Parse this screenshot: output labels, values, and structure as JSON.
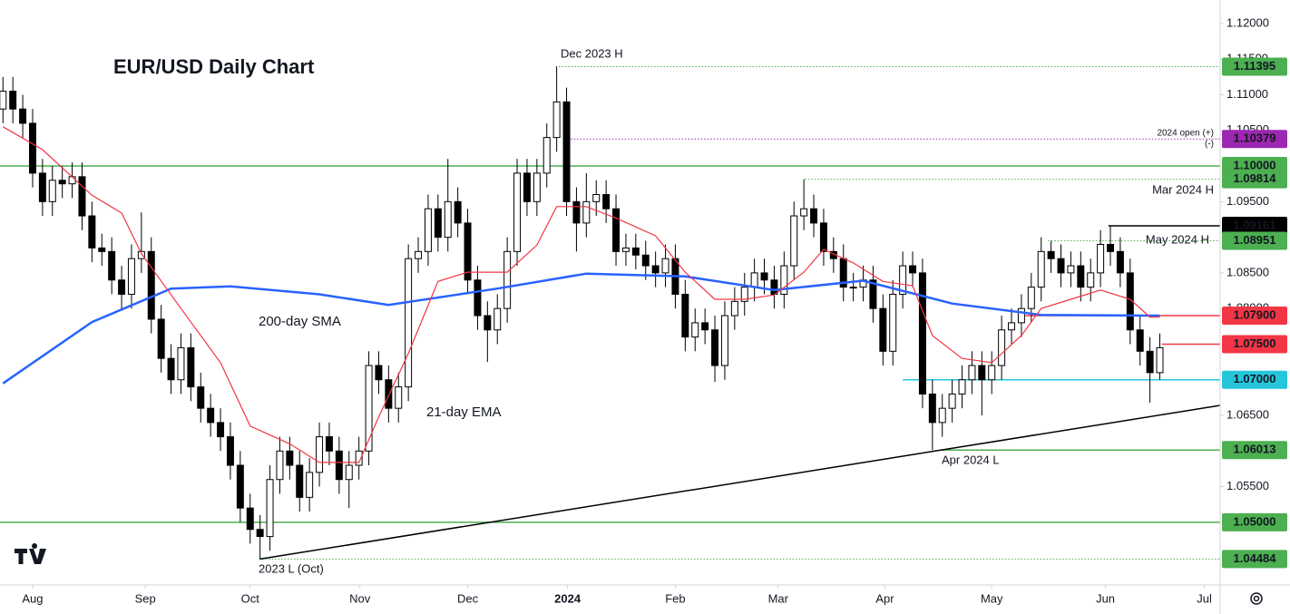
{
  "chart_data": {
    "type": "candlestick",
    "title": "EUR/USD Daily Chart",
    "up_color": "#ffffff",
    "down_color": "#000000",
    "open": [
      1.108,
      1.1105,
      1.108,
      1.106,
      1.099,
      1.095,
      1.098,
      1.0975,
      1.0985,
      1.093,
      1.0885,
      1.088,
      1.084,
      1.082,
      1.087,
      1.088,
      1.0785,
      1.073,
      1.07,
      1.0745,
      1.069,
      1.066,
      1.064,
      1.062,
      1.058,
      1.052,
      1.049,
      1.048,
      1.056,
      1.06,
      1.058,
      1.0535,
      1.057,
      1.062,
      1.06,
      1.056,
      1.058,
      1.06,
      1.072,
      1.07,
      1.066,
      1.069,
      1.087,
      1.088,
      1.094,
      1.09,
      1.095,
      1.092,
      1.084,
      1.079,
      1.077,
      1.08,
      1.088,
      1.099,
      1.095,
      1.099,
      1.104,
      1.109,
      1.095,
      1.092,
      1.095,
      1.096,
      1.094,
      1.088,
      1.0885,
      1.0875,
      1.086,
      1.085,
      1.087,
      1.082,
      1.076,
      1.078,
      1.077,
      1.072,
      1.079,
      1.081,
      1.083,
      1.085,
      1.084,
      1.082,
      1.086,
      1.093,
      1.094,
      1.092,
      1.088,
      1.087,
      1.083,
      1.083,
      1.084,
      1.08,
      1.074,
      1.082,
      1.086,
      1.085,
      1.068,
      1.064,
      1.066,
      1.068,
      1.07,
      1.072,
      1.07,
      1.072,
      1.077,
      1.078,
      1.08,
      1.083,
      1.088,
      1.087,
      1.085,
      1.086,
      1.083,
      1.085,
      1.089,
      1.088,
      1.085,
      1.077,
      1.074,
      1.071
    ],
    "high": [
      1.1125,
      1.1125,
      1.11,
      1.108,
      1.101,
      1.1,
      1.1,
      1.1005,
      1.1005,
      1.095,
      1.0905,
      1.09,
      1.086,
      1.089,
      1.0935,
      1.09,
      1.0805,
      1.075,
      1.0765,
      1.0765,
      1.071,
      1.068,
      1.066,
      1.064,
      1.06,
      1.054,
      1.051,
      1.058,
      1.062,
      1.062,
      1.06,
      1.059,
      1.064,
      1.064,
      1.062,
      1.06,
      1.062,
      1.074,
      1.074,
      1.072,
      1.071,
      1.089,
      1.09,
      1.096,
      1.096,
      1.101,
      1.097,
      1.094,
      1.086,
      1.081,
      1.082,
      1.09,
      1.101,
      1.101,
      1.101,
      1.106,
      1.11395,
      1.111,
      1.097,
      1.099,
      1.098,
      1.098,
      1.096,
      1.0905,
      1.0905,
      1.0895,
      1.088,
      1.089,
      1.089,
      1.084,
      1.08,
      1.08,
      1.079,
      1.081,
      1.083,
      1.085,
      1.087,
      1.087,
      1.086,
      1.088,
      1.095,
      1.09814,
      1.096,
      1.094,
      1.09,
      1.089,
      1.085,
      1.086,
      1.086,
      1.082,
      1.084,
      1.088,
      1.088,
      1.087,
      1.07,
      1.068,
      1.07,
      1.072,
      1.074,
      1.074,
      1.074,
      1.079,
      1.08,
      1.082,
      1.085,
      1.09,
      1.0895,
      1.089,
      1.088,
      1.088,
      1.087,
      1.091,
      1.09161,
      1.09,
      1.087,
      1.079,
      1.076,
      1.0765
    ],
    "low": [
      1.106,
      1.106,
      1.104,
      1.097,
      1.093,
      1.093,
      1.0955,
      1.0955,
      1.091,
      1.0865,
      1.086,
      1.082,
      1.08,
      1.08,
      1.085,
      1.0765,
      1.071,
      1.068,
      1.068,
      1.067,
      1.064,
      1.062,
      1.06,
      1.056,
      1.05,
      1.047,
      1.04484,
      1.046,
      1.054,
      1.056,
      1.0515,
      1.0515,
      1.055,
      1.058,
      1.054,
      1.052,
      1.056,
      1.058,
      1.068,
      1.064,
      1.064,
      1.067,
      1.085,
      1.086,
      1.088,
      1.088,
      1.09,
      1.082,
      1.077,
      1.0725,
      1.075,
      1.078,
      1.086,
      1.093,
      1.093,
      1.097,
      1.102,
      1.093,
      1.088,
      1.09,
      1.093,
      1.092,
      1.086,
      1.086,
      1.0855,
      1.084,
      1.083,
      1.083,
      1.08,
      1.074,
      1.074,
      1.075,
      1.0697,
      1.07,
      1.077,
      1.079,
      1.081,
      1.082,
      1.08,
      1.08,
      1.084,
      1.091,
      1.09,
      1.086,
      1.085,
      1.081,
      1.081,
      1.081,
      1.078,
      1.072,
      1.072,
      1.08,
      1.083,
      1.066,
      1.06013,
      1.062,
      1.064,
      1.066,
      1.068,
      1.065,
      1.068,
      1.07,
      1.075,
      1.076,
      1.078,
      1.081,
      1.085,
      1.083,
      1.083,
      1.081,
      1.081,
      1.083,
      1.086,
      1.083,
      1.075,
      1.072,
      1.0668,
      1.07
    ],
    "close": [
      1.1105,
      1.108,
      1.106,
      1.099,
      1.095,
      1.098,
      1.0975,
      1.0985,
      1.093,
      1.0885,
      1.088,
      1.084,
      1.082,
      1.087,
      1.088,
      1.0785,
      1.073,
      1.07,
      1.0745,
      1.069,
      1.066,
      1.064,
      1.062,
      1.058,
      1.052,
      1.049,
      1.048,
      1.056,
      1.06,
      1.058,
      1.0535,
      1.057,
      1.062,
      1.06,
      1.056,
      1.058,
      1.06,
      1.072,
      1.07,
      1.066,
      1.069,
      1.087,
      1.088,
      1.094,
      1.09,
      1.095,
      1.092,
      1.084,
      1.079,
      1.077,
      1.08,
      1.088,
      1.099,
      1.095,
      1.099,
      1.104,
      1.109,
      1.095,
      1.092,
      1.095,
      1.096,
      1.094,
      1.088,
      1.0885,
      1.0875,
      1.086,
      1.085,
      1.087,
      1.082,
      1.076,
      1.078,
      1.077,
      1.072,
      1.079,
      1.081,
      1.083,
      1.085,
      1.084,
      1.082,
      1.086,
      1.093,
      1.094,
      1.092,
      1.088,
      1.087,
      1.083,
      1.083,
      1.084,
      1.08,
      1.074,
      1.082,
      1.086,
      1.085,
      1.068,
      1.064,
      1.066,
      1.068,
      1.07,
      1.072,
      1.07,
      1.072,
      1.077,
      1.078,
      1.08,
      1.083,
      1.088,
      1.087,
      1.085,
      1.086,
      1.083,
      1.085,
      1.089,
      1.088,
      1.085,
      1.077,
      1.074,
      1.071,
      1.0745
    ],
    "series": [
      {
        "name": "200-day SMA",
        "color": "#2962ff",
        "x": [
          0,
          9,
          17,
          23,
          32,
          39,
          50,
          59,
          69,
          78,
          87,
          96,
          105,
          117
        ],
        "values": [
          1.0695,
          1.0781,
          1.0828,
          1.0831,
          1.082,
          1.0805,
          1.0828,
          1.0849,
          1.0845,
          1.0826,
          1.0839,
          1.0807,
          1.0791,
          1.079
        ]
      },
      {
        "name": "21-day EMA",
        "color": "#f23645",
        "x": [
          0,
          4,
          9,
          12,
          14,
          18,
          22,
          25,
          29,
          32,
          36,
          38,
          41,
          44,
          47,
          51,
          54,
          56,
          59,
          62,
          66,
          69,
          72,
          75,
          78,
          81,
          83,
          86,
          89,
          92,
          94,
          97,
          100,
          103,
          105,
          108,
          111,
          114,
          116,
          117
        ],
        "values": [
          1.1055,
          1.1023,
          1.0959,
          1.0934,
          1.0877,
          1.08,
          1.0724,
          1.0635,
          1.061,
          1.0584,
          1.0584,
          1.0648,
          1.0737,
          1.0838,
          1.0851,
          1.0851,
          1.0889,
          1.0943,
          1.0943,
          1.0927,
          1.0902,
          1.0851,
          1.0813,
          1.0813,
          1.0819,
          1.0851,
          1.0883,
          1.0864,
          1.0838,
          1.0832,
          1.0762,
          1.073,
          1.0724,
          1.0762,
          1.08,
          1.0813,
          1.0826,
          1.0813,
          1.0788,
          1.0788
        ]
      }
    ],
    "trendline": {
      "x": [
        26,
        123.1
      ],
      "values": [
        1.04484,
        1.0664
      ]
    },
    "levels": [
      {
        "value": 1.11395,
        "color": "#4caf50",
        "text_color": "#ffffff",
        "style": "dotted",
        "x_start": 55.9
      },
      {
        "value": 1.10379,
        "color": "#9c27b0",
        "text_color": "#ffffff",
        "style": "dotted",
        "x_start": 57.1
      },
      {
        "value": 1.1,
        "label": "1.10000",
        "color": "#4caf50",
        "text_color": "#ffffff",
        "style": "solid",
        "x_start": -0.3
      },
      {
        "value": 1.09814,
        "color": "#4caf50",
        "text_color": "#ffffff",
        "style": "dotted",
        "x_start": 81.1
      },
      {
        "value": 1.09161,
        "color": "#000000",
        "text_color": "#ffffff",
        "style": "solid",
        "x_start": 111.8
      },
      {
        "value": 1.08951,
        "color": "#4caf50",
        "text_color": "#ffffff",
        "style": "dotted",
        "x_start": 105.7
      },
      {
        "value": 1.079,
        "label": "1.07900",
        "color": "#f23645",
        "text_color": "#ffffff",
        "style": "solid",
        "x_start": 103.4
      },
      {
        "value": 1.075,
        "label": "1.07500",
        "color": "#f23645",
        "text_color": "#ffffff",
        "style": "solid",
        "x_start": 117.2
      },
      {
        "value": 1.07,
        "label": "1.07000",
        "color": "#26c6da",
        "text_color": "#131722",
        "style": "solid",
        "x_start": 91
      },
      {
        "value": 1.06013,
        "color": "#4caf50",
        "text_color": "#ffffff",
        "style": "solid",
        "x_start": 94.7
      },
      {
        "value": 1.05,
        "label": "1.05000",
        "color": "#4caf50",
        "text_color": "#ffffff",
        "style": "solid",
        "x_start": -0.3
      },
      {
        "value": 1.04484,
        "color": "#4caf50",
        "text_color": "#ffffff",
        "style": "dotted",
        "x_start": 25.9
      }
    ],
    "annotations": [
      "Dec 2023 H",
      "2024 open (+)",
      "(-)",
      "Mar 2024 H",
      "May 2024 H",
      "Apr 2024 L",
      "2023 L (Oct)"
    ],
    "xlim": [
      -0.3,
      123.1
    ],
    "ylim": [
      1.0412,
      1.1233
    ],
    "xticks": [
      {
        "value": 3,
        "label": "Aug"
      },
      {
        "value": 14.4,
        "label": "Sep"
      },
      {
        "value": 25,
        "label": "Oct"
      },
      {
        "value": 36.1,
        "label": "Nov"
      },
      {
        "value": 47,
        "label": "Dec"
      },
      {
        "value": 57.1,
        "label": "2024"
      },
      {
        "value": 68,
        "label": "Feb"
      },
      {
        "value": 78.4,
        "label": "Mar"
      },
      {
        "value": 89.2,
        "label": "Apr"
      },
      {
        "value": 100,
        "label": "May"
      },
      {
        "value": 111.5,
        "label": "Jun"
      },
      {
        "value": 121.5,
        "label": "Jul"
      }
    ],
    "yticks": [
      {
        "value": 1.12,
        "label": "1.12000"
      },
      {
        "value": 1.115,
        "label": "1.11500"
      },
      {
        "value": 1.11,
        "label": "1.11000"
      },
      {
        "value": 1.105,
        "label": "1.10500"
      },
      {
        "value": 1.095,
        "label": "1.09500"
      },
      {
        "value": 1.085,
        "label": "1.08500"
      },
      {
        "value": 1.08,
        "label": "1.08000"
      },
      {
        "value": 1.065,
        "label": "1.06500"
      },
      {
        "value": 1.055,
        "label": "1.05500"
      }
    ]
  }
}
